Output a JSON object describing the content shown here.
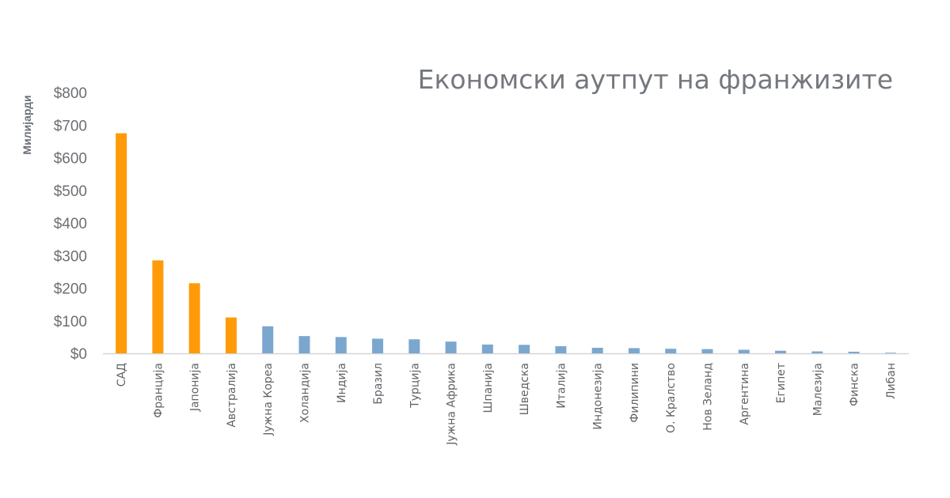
{
  "chart_data": {
    "type": "bar",
    "title": "Економски аутпут на франжизите",
    "xlabel": "",
    "ylabel": "Милијарди",
    "ylim": [
      0,
      800
    ],
    "yticks": [
      "$0",
      "$100",
      "$200",
      "$300",
      "$400",
      "$500",
      "$600",
      "$700",
      "$800"
    ],
    "grid": false,
    "legend": "none",
    "categories": [
      "САД",
      "Франција",
      "Јапонија",
      "Австралија",
      "Јужна Кореа",
      "Холандија",
      "Индија",
      "Бразил",
      "Турција",
      "Јужна Африка",
      "Шпанија",
      "Шведска",
      "Италија",
      "Индонезија",
      "Филипини",
      "О. Кралство",
      "Нов Зеланд",
      "Аргентина",
      "Египет",
      "Малезија",
      "Финска",
      "Либан"
    ],
    "values": [
      675,
      285,
      215,
      110,
      83,
      53,
      50,
      45,
      43,
      36,
      27,
      26,
      22,
      17,
      16,
      14,
      13,
      11,
      8,
      6,
      5,
      2
    ],
    "colors": {
      "highlight": "#ff9a08",
      "regular": "#7ba7cf"
    },
    "highlight_count": 4
  }
}
